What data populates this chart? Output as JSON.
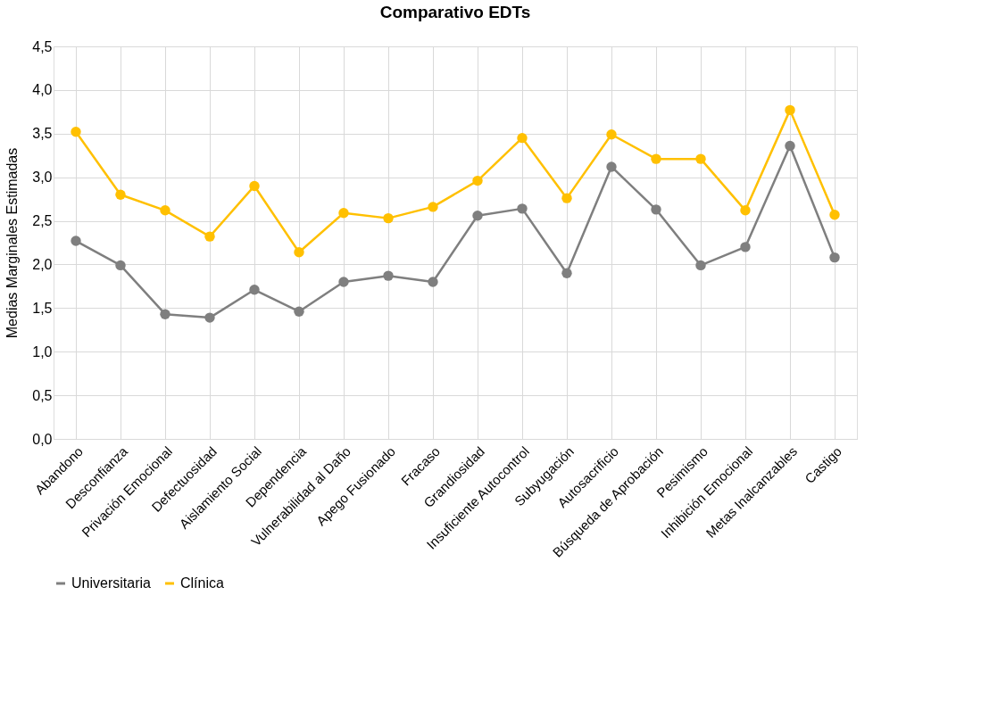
{
  "chart_data": {
    "type": "line",
    "title": "Comparativo EDTs",
    "ylabel": "Medias Marginales Estimadas",
    "categories": [
      "Abandono",
      "Desconfianza",
      "Privación Emocional",
      "Defectuosidad",
      "Aislamiento Social",
      "Dependencia",
      "Vulnerabilidad al Daño",
      "Apego Fusionado",
      "Fracaso",
      "Grandiosidad",
      "Insuficiente Autocontrol",
      "Subyugación",
      "Autosacrificio",
      "Búsqueda de Aprobación",
      "Pesimismo",
      "Inhibición Emocional",
      "Metas Inalcanzables",
      "Castigo"
    ],
    "series": [
      {
        "name": "Universitaria",
        "color": "#7f7f7f",
        "values": [
          2.27,
          1.99,
          1.43,
          1.39,
          1.71,
          1.46,
          1.8,
          1.87,
          1.8,
          2.56,
          2.64,
          1.9,
          3.12,
          2.63,
          1.99,
          2.2,
          3.36,
          2.08
        ]
      },
      {
        "name": "Clínica",
        "color": "#ffc000",
        "values": [
          3.52,
          2.8,
          2.62,
          2.32,
          2.9,
          2.14,
          2.59,
          2.53,
          2.66,
          2.96,
          3.45,
          2.76,
          3.49,
          3.21,
          3.21,
          2.62,
          3.77,
          2.57
        ]
      }
    ],
    "ylim": [
      0,
      4.5
    ],
    "yticks": [
      {
        "value": 0,
        "label": "0,0"
      },
      {
        "value": 0.5,
        "label": "0,5"
      },
      {
        "value": 1,
        "label": "1,0"
      },
      {
        "value": 1.5,
        "label": "1,5"
      },
      {
        "value": 2,
        "label": "2,0"
      },
      {
        "value": 2.5,
        "label": "2,5"
      },
      {
        "value": 3,
        "label": "3,0"
      },
      {
        "value": 3.5,
        "label": "3,5"
      },
      {
        "value": 4,
        "label": "4,0"
      },
      {
        "value": 4.5,
        "label": "4,5"
      }
    ],
    "grid": true,
    "legend": "bottom",
    "marker": "circle",
    "line_style": "solid"
  }
}
